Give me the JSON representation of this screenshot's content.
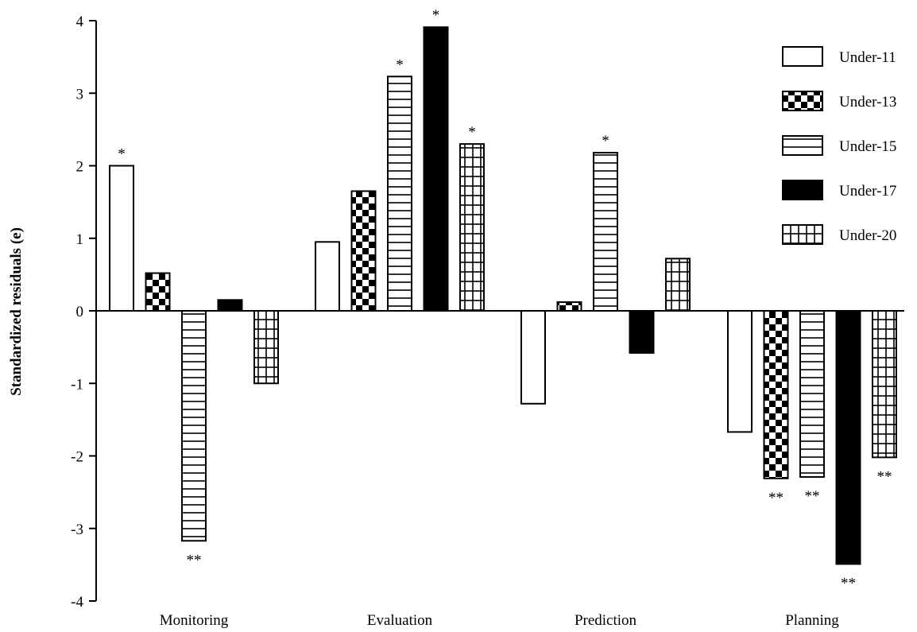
{
  "chart_data": {
    "type": "bar",
    "title": "",
    "xlabel": "",
    "ylabel": "Standardized residuals (e)",
    "ylim": [
      -4,
      4
    ],
    "yticks": [
      -4,
      -3,
      -2,
      -1,
      0,
      1,
      2,
      3,
      4
    ],
    "grid": false,
    "legend_position": "top-right",
    "categories": [
      "Monitoring",
      "Evaluation",
      "Prediction",
      "Planning"
    ],
    "series": [
      {
        "name": "Under-11",
        "pattern": "white",
        "values": [
          2.0,
          0.95,
          -1.28,
          -1.67
        ],
        "significance": [
          "*",
          "",
          "",
          ""
        ]
      },
      {
        "name": "Under-13",
        "pattern": "checkered",
        "values": [
          0.52,
          1.65,
          0.12,
          -2.31
        ],
        "significance": [
          "",
          "",
          "",
          "**"
        ]
      },
      {
        "name": "Under-15",
        "pattern": "horizontal-stripes",
        "values": [
          -3.17,
          3.23,
          2.18,
          -2.29
        ],
        "significance": [
          "**",
          "*",
          "*",
          "**"
        ]
      },
      {
        "name": "Under-17",
        "pattern": "solid-black",
        "values": [
          0.15,
          3.91,
          -0.58,
          -3.49
        ],
        "significance": [
          "",
          "*",
          "",
          "**"
        ]
      },
      {
        "name": "Under-20",
        "pattern": "grid",
        "values": [
          -1.0,
          2.3,
          0.72,
          -2.02
        ],
        "significance": [
          "",
          "*",
          "",
          "**"
        ]
      }
    ]
  }
}
